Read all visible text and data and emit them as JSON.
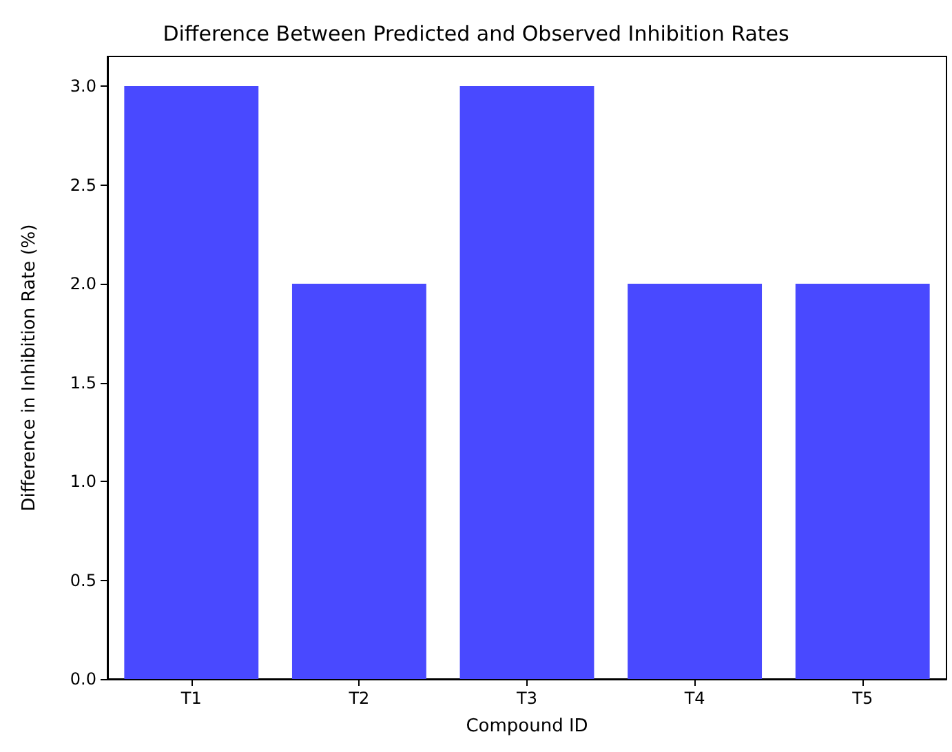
{
  "chart_data": {
    "type": "bar",
    "title": "Difference Between Predicted and Observed Inhibition Rates",
    "xlabel": "Compound ID",
    "ylabel": "Difference in Inhibition Rate (%)",
    "categories": [
      "T1",
      "T2",
      "T3",
      "T4",
      "T5"
    ],
    "values": [
      3,
      2,
      3,
      2,
      2
    ],
    "color": "#4949ff",
    "ylim": [
      0,
      3.15
    ],
    "yticks": [
      {
        "value": 0,
        "label": "0.0"
      },
      {
        "value": 0.5,
        "label": "0.5"
      },
      {
        "value": 1,
        "label": "1.0"
      },
      {
        "value": 1.5,
        "label": "1.5"
      },
      {
        "value": 2,
        "label": "2.0"
      },
      {
        "value": 2.5,
        "label": "2.5"
      },
      {
        "value": 3,
        "label": "3.0"
      }
    ],
    "grid": false
  }
}
